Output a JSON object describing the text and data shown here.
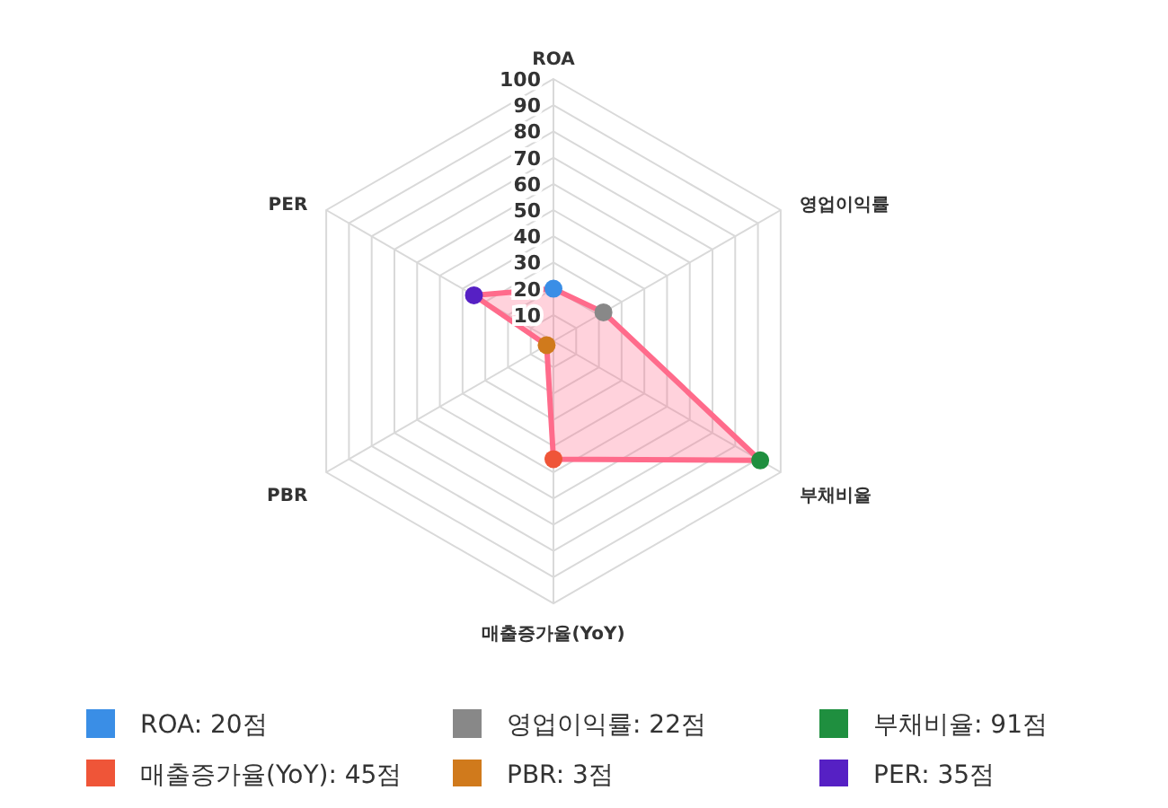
{
  "chart_data": {
    "type": "radar",
    "categories": [
      "ROA",
      "영업이익률",
      "부채비율",
      "매출증가율(YoY)",
      "PBR",
      "PER"
    ],
    "series": [
      {
        "color": "#ff6b8b",
        "values": [
          20,
          22,
          91,
          45,
          3,
          35
        ],
        "colors": [
          "#3a8ee6",
          "#888888",
          "#1f8f3f",
          "#ef5538",
          "#d07a1c",
          "#5620c4"
        ]
      }
    ],
    "annotations": [
      "ROA: 20점",
      "영업이익률: 22점",
      "부채비율: 91점",
      "매출증가율(YoY): 45점",
      "PBR: 3점",
      "PER: 35점"
    ],
    "ylim": [
      0,
      100
    ],
    "yticks": [
      10,
      20,
      30,
      40,
      50,
      60,
      70,
      80,
      90,
      100
    ],
    "grid": true,
    "marker": "circle"
  }
}
